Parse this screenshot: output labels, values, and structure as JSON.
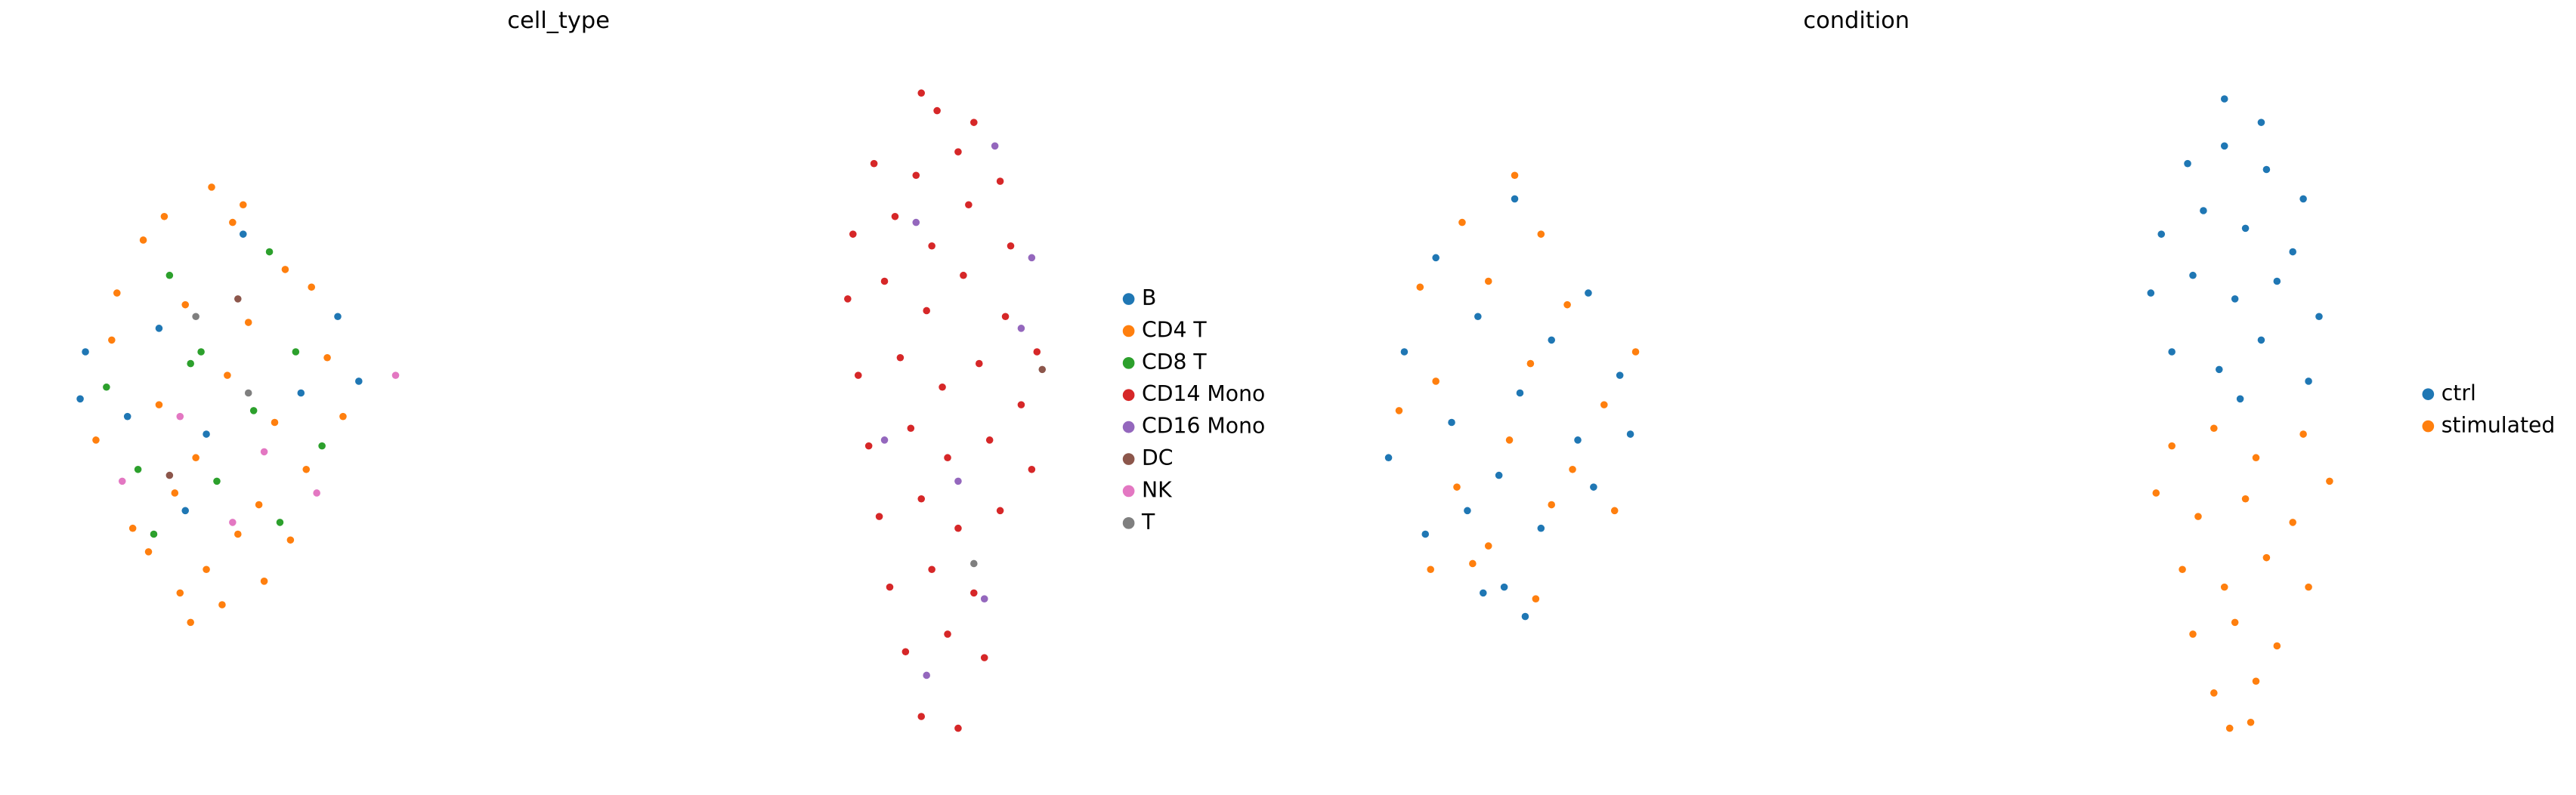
{
  "chart_data": [
    {
      "type": "scatter",
      "title": "cell_type",
      "legend": "right",
      "xlim": [
        0,
        20
      ],
      "ylim": [
        0,
        12
      ],
      "series": [
        {
          "name": "B",
          "color": "#1f77b4",
          "x": [
            1.0,
            2.4,
            5.8,
            6.2,
            4.0,
            1.8,
            5.1,
            3.3,
            0.9,
            2.9
          ],
          "y": [
            7.0,
            7.4,
            7.6,
            6.5,
            9.0,
            5.9,
            6.3,
            5.6,
            6.2,
            4.3
          ]
        },
        {
          "name": "CD4 T",
          "color": "#ff7f0e",
          "x": [
            2.1,
            3.4,
            4.8,
            1.5,
            2.9,
            4.1,
            5.6,
            3.7,
            2.4,
            4.6,
            1.2,
            3.1,
            5.2,
            2.7,
            4.3,
            3.9,
            1.9,
            5.9,
            3.3,
            2.2,
            4.9,
            3.6,
            2.8,
            4.4,
            3.0,
            1.6,
            5.3,
            3.8,
            2.5,
            4.0
          ],
          "y": [
            8.9,
            9.8,
            8.4,
            7.2,
            7.8,
            7.5,
            6.9,
            6.6,
            6.1,
            5.8,
            5.5,
            5.2,
            5.0,
            4.6,
            4.4,
            3.9,
            4.0,
            5.9,
            3.3,
            3.6,
            3.8,
            2.7,
            2.9,
            3.1,
            2.4,
            8.0,
            8.1,
            9.2,
            9.3,
            9.5
          ]
        },
        {
          "name": "CD8 T",
          "color": "#2ca02c",
          "x": [
            2.6,
            4.5,
            1.4,
            5.0,
            3.2,
            4.2,
            2.0,
            5.5,
            3.5,
            2.3,
            4.7,
            3.0
          ],
          "y": [
            8.3,
            8.7,
            6.4,
            7.0,
            7.0,
            6.0,
            5.0,
            5.4,
            4.8,
            3.9,
            4.1,
            6.8
          ]
        },
        {
          "name": "CD14 Mono",
          "color": "#d62728",
          "x": [
            16.9,
            17.2,
            17.9,
            16.0,
            16.8,
            17.6,
            18.4,
            15.6,
            16.4,
            17.1,
            17.8,
            18.6,
            15.5,
            16.2,
            17.0,
            17.7,
            18.5,
            19.1,
            15.7,
            16.5,
            17.3,
            18.0,
            18.8,
            15.9,
            16.7,
            17.4,
            18.2,
            19.0,
            16.1,
            16.9,
            17.6,
            18.4,
            16.3,
            17.1,
            17.9,
            16.6,
            17.4,
            18.1,
            16.9,
            17.6
          ],
          "y": [
            11.4,
            11.1,
            10.9,
            10.2,
            10.0,
            10.4,
            9.9,
            9.0,
            9.3,
            8.8,
            9.5,
            8.8,
            7.9,
            8.2,
            7.7,
            8.3,
            7.6,
            7.0,
            6.6,
            6.9,
            6.4,
            6.8,
            6.1,
            5.4,
            5.7,
            5.2,
            5.5,
            5.0,
            4.2,
            4.5,
            4.0,
            4.3,
            3.0,
            3.3,
            2.9,
            1.9,
            2.2,
            1.8,
            0.8,
            0.6
          ]
        },
        {
          "name": "CD16 Mono",
          "color": "#9467bd",
          "x": [
            18.3,
            16.8,
            18.8,
            17.6,
            16.2,
            18.1,
            17.0,
            19.0
          ],
          "y": [
            10.5,
            9.2,
            7.4,
            4.8,
            5.5,
            2.8,
            1.5,
            8.6
          ]
        },
        {
          "name": "DC",
          "color": "#8c564b",
          "x": [
            3.9,
            19.2,
            2.6
          ],
          "y": [
            7.9,
            6.7,
            4.9
          ]
        },
        {
          "name": "NK",
          "color": "#e377c2",
          "x": [
            4.4,
            2.8,
            5.4,
            3.8,
            1.7,
            6.9
          ],
          "y": [
            5.3,
            5.9,
            4.6,
            4.1,
            4.8,
            6.6
          ]
        },
        {
          "name": "T",
          "color": "#7f7f7f",
          "x": [
            4.1,
            17.9,
            3.1
          ],
          "y": [
            6.3,
            3.4,
            7.6
          ]
        }
      ]
    },
    {
      "type": "scatter",
      "title": "condition",
      "legend": "right",
      "xlim": [
        0,
        20
      ],
      "ylim": [
        0,
        12
      ],
      "series": [
        {
          "name": "ctrl",
          "color": "#1f77b4",
          "x": [
            2.0,
            3.5,
            4.9,
            1.4,
            2.8,
            4.2,
            5.5,
            3.6,
            2.3,
            4.7,
            1.1,
            3.2,
            5.0,
            2.6,
            4.0,
            3.3,
            1.8,
            5.7,
            3.7,
            2.9,
            17.0,
            17.7,
            16.3,
            17.0,
            17.8,
            18.5,
            15.8,
            16.6,
            17.4,
            18.3,
            15.6,
            16.4,
            17.2,
            18.0,
            18.8,
            16.0,
            16.9,
            17.7,
            18.6,
            17.3
          ],
          "y": [
            8.6,
            9.6,
            8.0,
            7.0,
            7.6,
            7.2,
            6.6,
            6.3,
            5.8,
            5.5,
            5.2,
            4.9,
            4.7,
            4.3,
            4.0,
            3.0,
            3.9,
            5.6,
            2.5,
            2.9,
            11.3,
            10.9,
            10.2,
            10.5,
            10.1,
            9.6,
            9.0,
            9.4,
            9.1,
            8.7,
            8.0,
            8.3,
            7.9,
            8.2,
            7.6,
            7.0,
            6.7,
            7.2,
            6.5,
            6.2
          ]
        },
        {
          "name": "stimulated",
          "color": "#ff7f0e",
          "x": [
            2.5,
            4.0,
            1.7,
            3.0,
            4.5,
            5.8,
            3.8,
            2.0,
            5.2,
            1.3,
            3.4,
            4.6,
            2.4,
            4.2,
            3.0,
            1.9,
            5.4,
            3.9,
            2.7,
            3.5,
            16.0,
            16.8,
            17.6,
            18.5,
            15.7,
            16.5,
            17.4,
            18.3,
            19.0,
            16.2,
            17.0,
            17.8,
            18.6,
            16.4,
            17.2,
            18.0,
            16.8,
            17.6,
            17.1,
            17.5
          ],
          "y": [
            9.2,
            9.0,
            8.1,
            8.2,
            7.8,
            7.0,
            6.8,
            6.5,
            6.1,
            6.0,
            5.5,
            5.0,
            4.7,
            4.4,
            3.7,
            3.3,
            4.3,
            2.8,
            3.4,
            10.0,
            5.4,
            5.7,
            5.2,
            5.6,
            4.6,
            4.2,
            4.5,
            4.1,
            4.8,
            3.3,
            3.0,
            3.5,
            3.0,
            2.2,
            2.4,
            2.0,
            1.2,
            1.4,
            0.6,
            0.7
          ]
        }
      ]
    }
  ]
}
